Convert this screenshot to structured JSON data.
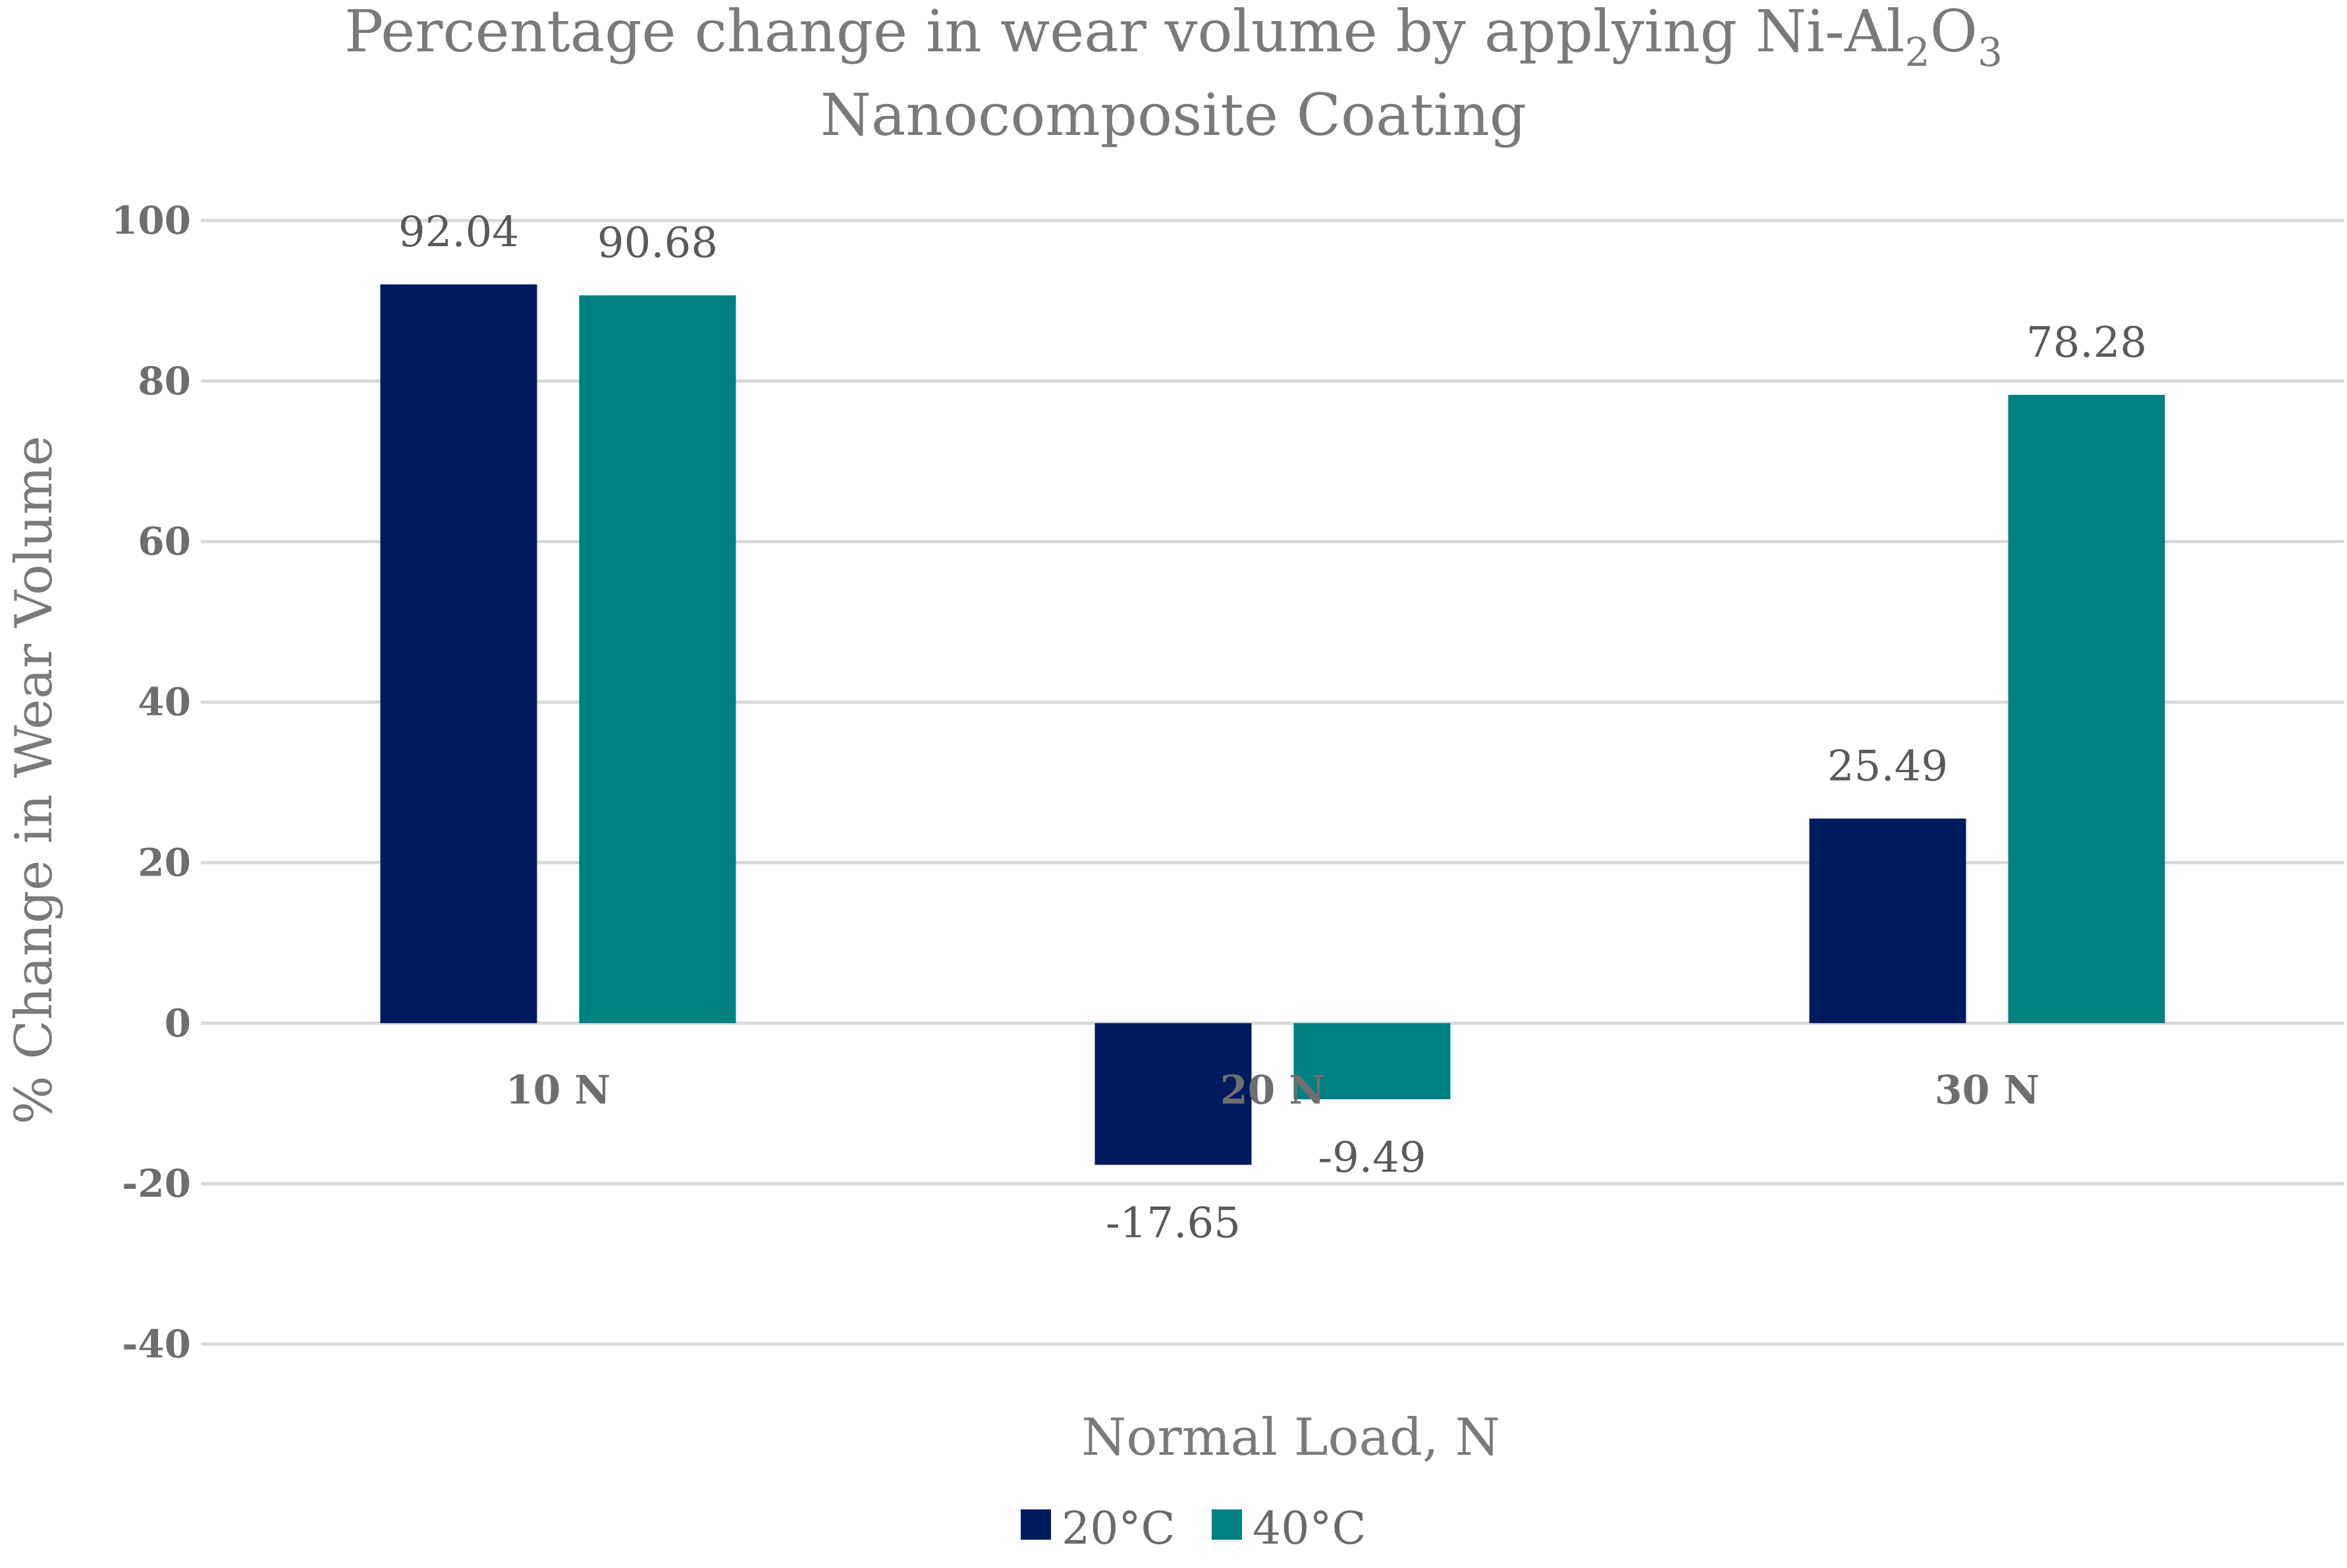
{
  "chart_data": {
    "type": "bar",
    "title_line1_main": "Percentage change in wear volume by applying Ni-Al",
    "title_sub1": "2",
    "title_mid": "O",
    "title_sub2": "3",
    "title_line2": "Nanocomposite Coating",
    "xlabel": "Normal Load, N",
    "ylabel": "% Change in Wear Volume",
    "ylim": [
      -40,
      100
    ],
    "yticks": [
      100,
      80,
      60,
      40,
      20,
      0,
      -20,
      -40
    ],
    "categories": [
      "10 N",
      "20 N",
      "30 N"
    ],
    "series": [
      {
        "name": "20°C",
        "color": "#001a5e",
        "values": [
          92.04,
          -17.65,
          25.49
        ],
        "labels": [
          "92.04",
          "-17.65",
          "25.49"
        ]
      },
      {
        "name": "40°C",
        "color": "#008080",
        "values": [
          90.68,
          -9.49,
          78.28
        ],
        "labels": [
          "90.68",
          "-9.49",
          "78.28"
        ]
      }
    ],
    "legend_position": "bottom",
    "grid": true
  }
}
